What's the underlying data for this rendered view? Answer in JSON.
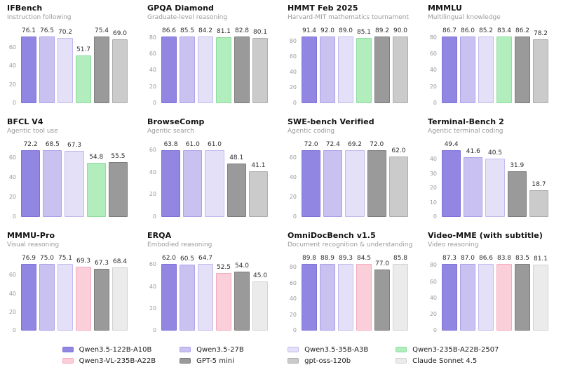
{
  "page": {
    "background": "#ffffff"
  },
  "models": [
    {
      "name": "Qwen3.5-122B-A10B",
      "fill": "#9187e3",
      "border": "#7d72d8"
    },
    {
      "name": "Qwen3.5-27B",
      "fill": "#c9c2f0",
      "border": "#aba1e8"
    },
    {
      "name": "Qwen3.5-35B-A3B",
      "fill": "#e3e0f7",
      "border": "#c2bbee"
    },
    {
      "name": "Qwen3-235B-A22B-2507",
      "fill": "#b2edbd",
      "border": "#8edd9f"
    },
    {
      "name": "Qwen3-VL-235B-A22B",
      "fill": "#fbcfda",
      "border": "#f5abbe"
    },
    {
      "name": "GPT-5 mini",
      "fill": "#9a9a9a",
      "border": "#7d7d7d"
    },
    {
      "name": "gpt-oss-120b",
      "fill": "#cbcbcb",
      "border": "#aeaeae"
    },
    {
      "name": "Claude Sonnet 4.5",
      "fill": "#ebebeb",
      "border": "#d2d2d2"
    }
  ],
  "chart_data": [
    {
      "type": "bar",
      "title": "IFBench",
      "subtitle": "Instruction following",
      "yticks": [
        0,
        20,
        40,
        60
      ],
      "ylim": [
        0,
        81
      ],
      "series": [
        {
          "model": "Qwen3.5-122B-A10B",
          "value": 76.1
        },
        {
          "model": "Qwen3.5-27B",
          "value": 76.5
        },
        {
          "model": "Qwen3.5-35B-A3B",
          "value": 70.2
        },
        {
          "model": "Qwen3-235B-A22B-2507",
          "value": 51.7
        },
        {
          "model": "GPT-5 mini",
          "value": 75.4
        },
        {
          "model": "gpt-oss-120b",
          "value": 69.0
        }
      ]
    },
    {
      "type": "bar",
      "title": "GPQA Diamond",
      "subtitle": "Graduate-level reasoning",
      "yticks": [
        0,
        20,
        40,
        60,
        80
      ],
      "ylim": [
        0,
        92
      ],
      "series": [
        {
          "model": "Qwen3.5-122B-A10B",
          "value": 86.6
        },
        {
          "model": "Qwen3.5-27B",
          "value": 85.5
        },
        {
          "model": "Qwen3.5-35B-A3B",
          "value": 84.2
        },
        {
          "model": "Qwen3-235B-A22B-2507",
          "value": 81.1
        },
        {
          "model": "GPT-5 mini",
          "value": 82.8
        },
        {
          "model": "gpt-oss-120b",
          "value": 80.1
        }
      ]
    },
    {
      "type": "bar",
      "title": "HMMT Feb 2025",
      "subtitle": "Harvard-MIT mathematics tournament",
      "yticks": [
        0,
        20,
        40,
        60,
        80
      ],
      "ylim": [
        0,
        97.5
      ],
      "series": [
        {
          "model": "Qwen3.5-122B-A10B",
          "value": 91.4
        },
        {
          "model": "Qwen3.5-27B",
          "value": 92.0
        },
        {
          "model": "Qwen3.5-35B-A3B",
          "value": 89.0
        },
        {
          "model": "Qwen3-235B-A22B-2507",
          "value": 85.1
        },
        {
          "model": "GPT-5 mini",
          "value": 89.2
        },
        {
          "model": "gpt-oss-120b",
          "value": 90.0
        }
      ]
    },
    {
      "type": "bar",
      "title": "MMMLU",
      "subtitle": "Multilingual knowledge",
      "yticks": [
        0,
        20,
        40,
        60,
        80
      ],
      "ylim": [
        0,
        92
      ],
      "series": [
        {
          "model": "Qwen3.5-122B-A10B",
          "value": 86.7
        },
        {
          "model": "Qwen3.5-27B",
          "value": 86.0
        },
        {
          "model": "Qwen3.5-35B-A3B",
          "value": 85.2
        },
        {
          "model": "Qwen3-235B-A22B-2507",
          "value": 83.4
        },
        {
          "model": "GPT-5 mini",
          "value": 86.2
        },
        {
          "model": "gpt-oss-120b",
          "value": 78.2
        }
      ]
    },
    {
      "type": "bar",
      "title": "BFCL V4",
      "subtitle": "Agentic tool use",
      "yticks": [
        0,
        20,
        40,
        60
      ],
      "ylim": [
        0,
        76.5
      ],
      "series": [
        {
          "model": "Qwen3.5-122B-A10B",
          "value": 72.2
        },
        {
          "model": "Qwen3.5-27B",
          "value": 68.5
        },
        {
          "model": "Qwen3.5-35B-A3B",
          "value": 67.3
        },
        {
          "model": "Qwen3-235B-A22B-2507",
          "value": 54.8
        },
        {
          "model": "GPT-5 mini",
          "value": 55.5
        }
      ]
    },
    {
      "type": "bar",
      "title": "BrowseComp",
      "subtitle": "Agentic search",
      "yticks": [
        0,
        20,
        40,
        60
      ],
      "ylim": [
        0,
        67.6
      ],
      "series": [
        {
          "model": "Qwen3.5-122B-A10B",
          "value": 63.8
        },
        {
          "model": "Qwen3.5-27B",
          "value": 61.0
        },
        {
          "model": "Qwen3.5-35B-A3B",
          "value": 61.0
        },
        {
          "model": "GPT-5 mini",
          "value": 48.1
        },
        {
          "model": "gpt-oss-120b",
          "value": 41.1
        }
      ]
    },
    {
      "type": "bar",
      "title": "SWE-bench Verified",
      "subtitle": "Agentic coding",
      "yticks": [
        0,
        20,
        40,
        60
      ],
      "ylim": [
        0,
        76.7
      ],
      "series": [
        {
          "model": "Qwen3.5-122B-A10B",
          "value": 72.0
        },
        {
          "model": "Qwen3.5-27B",
          "value": 72.4
        },
        {
          "model": "Qwen3.5-35B-A3B",
          "value": 69.2
        },
        {
          "model": "GPT-5 mini",
          "value": 72.0
        },
        {
          "model": "gpt-oss-120b",
          "value": 62.0
        }
      ]
    },
    {
      "type": "bar",
      "title": "Terminal-Bench 2",
      "subtitle": "Agentic terminal coding",
      "yticks": [
        0,
        10,
        20,
        30,
        40
      ],
      "ylim": [
        0,
        52.4
      ],
      "series": [
        {
          "model": "Qwen3.5-122B-A10B",
          "value": 49.4
        },
        {
          "model": "Qwen3.5-27B",
          "value": 41.6
        },
        {
          "model": "Qwen3.5-35B-A3B",
          "value": 40.5
        },
        {
          "model": "GPT-5 mini",
          "value": 31.9
        },
        {
          "model": "gpt-oss-120b",
          "value": 18.7
        }
      ]
    },
    {
      "type": "bar",
      "title": "MMMU-Pro",
      "subtitle": "Visual reasoning",
      "yticks": [
        0,
        20,
        40,
        60
      ],
      "ylim": [
        0,
        81.5
      ],
      "series": [
        {
          "model": "Qwen3.5-122B-A10B",
          "value": 76.9
        },
        {
          "model": "Qwen3.5-27B",
          "value": 75.0
        },
        {
          "model": "Qwen3.5-35B-A3B",
          "value": 75.1
        },
        {
          "model": "Qwen3-VL-235B-A22B",
          "value": 69.3
        },
        {
          "model": "GPT-5 mini",
          "value": 67.3
        },
        {
          "model": "Claude Sonnet 4.5",
          "value": 68.4
        }
      ]
    },
    {
      "type": "bar",
      "title": "ERQA",
      "subtitle": "Embodied reasoning",
      "yticks": [
        0,
        20,
        40,
        60
      ],
      "ylim": [
        0,
        68.6
      ],
      "series": [
        {
          "model": "Qwen3.5-122B-A10B",
          "value": 62.0
        },
        {
          "model": "Qwen3.5-27B",
          "value": 60.5
        },
        {
          "model": "Qwen3.5-35B-A3B",
          "value": 64.7
        },
        {
          "model": "Qwen3-VL-235B-A22B",
          "value": 52.5
        },
        {
          "model": "GPT-5 mini",
          "value": 54.0
        },
        {
          "model": "Claude Sonnet 4.5",
          "value": 45.0
        }
      ]
    },
    {
      "type": "bar",
      "title": "OmniDocBench v1.5",
      "subtitle": "Document recognition & understanding",
      "yticks": [
        0,
        20,
        40,
        60,
        80
      ],
      "ylim": [
        0,
        95.2
      ],
      "series": [
        {
          "model": "Qwen3.5-122B-A10B",
          "value": 89.8
        },
        {
          "model": "Qwen3.5-27B",
          "value": 88.9
        },
        {
          "model": "Qwen3.5-35B-A3B",
          "value": 89.3
        },
        {
          "model": "Qwen3-VL-235B-A22B",
          "value": 84.5
        },
        {
          "model": "GPT-5 mini",
          "value": 77.0
        },
        {
          "model": "Claude Sonnet 4.5",
          "value": 85.8
        }
      ]
    },
    {
      "type": "bar",
      "title": "Video-MME (with subtitle)",
      "subtitle": "Video reasoning",
      "yticks": [
        0,
        20,
        40,
        60,
        80
      ],
      "ylim": [
        0,
        92.5
      ],
      "series": [
        {
          "model": "Qwen3.5-122B-A10B",
          "value": 87.3
        },
        {
          "model": "Qwen3.5-27B",
          "value": 87.0
        },
        {
          "model": "Qwen3.5-35B-A3B",
          "value": 86.6
        },
        {
          "model": "Qwen3-VL-235B-A22B",
          "value": 83.8
        },
        {
          "model": "GPT-5 mini",
          "value": 83.5
        },
        {
          "model": "Claude Sonnet 4.5",
          "value": 81.1
        }
      ]
    }
  ]
}
